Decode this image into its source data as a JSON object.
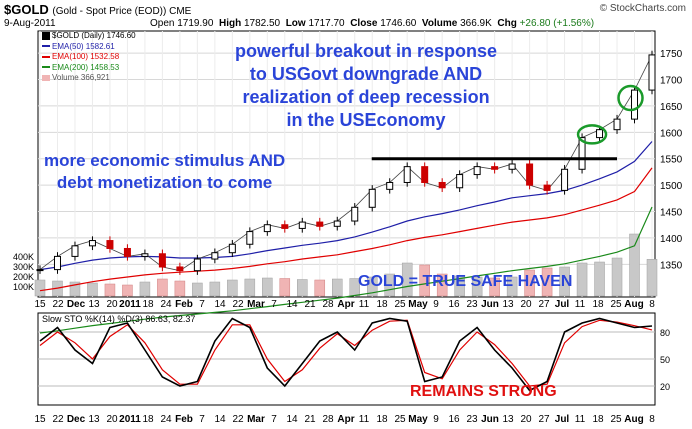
{
  "header": {
    "symbol": "$GOLD",
    "description": "(Gold - Spot Price (EOD)) CME",
    "brand": "© StockCharts.com",
    "date": "9-Aug-2011",
    "open_label": "Open",
    "open": "1719.90",
    "high_label": "High",
    "high": "1782.50",
    "low_label": "Low",
    "low": "1717.70",
    "close_label": "Close",
    "close": "1746.60",
    "volume_label": "Volume",
    "volume": "366.9K",
    "chg_label": "Chg",
    "chg": "+26.80 (+1.56%)"
  },
  "legend": {
    "price": "$GOLD (Daily) 1746.60",
    "ema50": "EMA(50) 1582.61",
    "ema100": "EMA(100) 1532.58",
    "ema200": "EMA(200) 1458.53",
    "volume": "Volume 366,921"
  },
  "annotations": {
    "breakout_line1": "powerful breakout in response",
    "breakout_line2": "to USGovt downgrade AND",
    "breakout_line3": "realization of deep recession",
    "breakout_line4": "in the USEconomy",
    "stimulus_line1": "more economic stimulus AND",
    "stimulus_line2": "debt monetization to come",
    "safe_haven": "GOLD = TRUE SAFE HAVEN",
    "remains_strong": "REMAINS STRONG"
  },
  "colors": {
    "price_up": "#000000",
    "price_down": "#cc0000",
    "ema50": "#1f1fa8",
    "ema100": "#e00000",
    "ema200": "#1a8a1a",
    "volume": "#f0b4b4",
    "stoch_k": "#000000",
    "stoch_d": "#e00000",
    "annotation": "#2a44d8",
    "annotation_alert": "#e01010",
    "resistance": "#000000",
    "ellipse": "#1a9a2a"
  },
  "chart_data": [
    {
      "type": "candlestick",
      "title": "$GOLD (Gold - Spot Price (EOD)) CME",
      "y_axis_side": "right",
      "ylim": [
        1290,
        1790
      ],
      "y_ticks": [
        1350,
        1400,
        1450,
        1500,
        1550,
        1600,
        1650,
        1700,
        1750
      ],
      "volume_ticks": [
        "100K",
        "200K",
        "300K",
        "400K"
      ],
      "volume_ylim": [
        0,
        900
      ],
      "x_tick_labels": [
        "15",
        "22",
        "Dec",
        "13",
        "20",
        "2011",
        "18",
        "24",
        "Feb",
        "7",
        "14",
        "22",
        "Mar",
        "7",
        "14",
        "21",
        "28",
        "Apr",
        "11",
        "18",
        "25",
        "May",
        "9",
        "16",
        "23",
        "Jun",
        "13",
        "20",
        "27",
        "Jul",
        "11",
        "18",
        "25",
        "Aug",
        "8"
      ],
      "x": [
        "Nov 15",
        "Nov 22",
        "Dec 1",
        "Dec 13",
        "Dec 20",
        "Jan 3",
        "Jan 18",
        "Jan 24",
        "Feb 1",
        "Feb 7",
        "Feb 14",
        "Feb 22",
        "Mar 1",
        "Mar 7",
        "Mar 14",
        "Mar 21",
        "Mar 28",
        "Apr 1",
        "Apr 11",
        "Apr 18",
        "Apr 25",
        "May 2",
        "May 9",
        "May 16",
        "May 23",
        "Jun 1",
        "Jun 13",
        "Jun 20",
        "Jun 27",
        "Jul 1",
        "Jul 11",
        "Jul 18",
        "Jul 25",
        "Aug 1",
        "Aug 8",
        "Aug 9"
      ],
      "close": [
        1340,
        1365,
        1385,
        1395,
        1380,
        1365,
        1370,
        1345,
        1338,
        1360,
        1372,
        1388,
        1412,
        1425,
        1418,
        1430,
        1422,
        1432,
        1458,
        1492,
        1505,
        1535,
        1505,
        1495,
        1520,
        1535,
        1530,
        1540,
        1500,
        1490,
        1530,
        1590,
        1605,
        1625,
        1680,
        1746.6
      ],
      "ema50": [
        1340,
        1345,
        1352,
        1358,
        1362,
        1364,
        1365,
        1364,
        1362,
        1362,
        1363,
        1365,
        1370,
        1376,
        1381,
        1386,
        1390,
        1395,
        1402,
        1411,
        1421,
        1432,
        1440,
        1446,
        1453,
        1461,
        1468,
        1476,
        1480,
        1484,
        1490,
        1500,
        1512,
        1525,
        1545,
        1582.61
      ],
      "ema100": [
        1300,
        1305,
        1311,
        1317,
        1322,
        1326,
        1330,
        1333,
        1335,
        1337,
        1339,
        1342,
        1346,
        1351,
        1355,
        1360,
        1364,
        1368,
        1374,
        1380,
        1387,
        1395,
        1401,
        1406,
        1412,
        1418,
        1424,
        1430,
        1434,
        1438,
        1444,
        1453,
        1462,
        1472,
        1488,
        1532.58
      ],
      "ema200": [
        1220,
        1224,
        1229,
        1234,
        1238,
        1242,
        1246,
        1250,
        1253,
        1256,
        1259,
        1262,
        1266,
        1270,
        1274,
        1278,
        1282,
        1286,
        1291,
        1296,
        1302,
        1308,
        1313,
        1318,
        1323,
        1328,
        1333,
        1338,
        1342,
        1346,
        1351,
        1358,
        1365,
        1373,
        1385,
        1458.53
      ],
      "volume": [
        160,
        150,
        140,
        130,
        120,
        110,
        140,
        170,
        150,
        130,
        140,
        160,
        170,
        180,
        175,
        165,
        160,
        170,
        175,
        190,
        220,
        330,
        310,
        220,
        200,
        190,
        180,
        190,
        260,
        280,
        290,
        330,
        340,
        380,
        620,
        366.9
      ],
      "resistance_level": 1550,
      "series": [
        {
          "name": "EMA(50)",
          "last": 1582.61
        },
        {
          "name": "EMA(100)",
          "last": 1532.58
        },
        {
          "name": "EMA(200)",
          "last": 1458.53
        },
        {
          "name": "Volume",
          "last": 366921
        }
      ]
    },
    {
      "type": "line",
      "title": "Slow STO %K(14) %D(3) 86.63, 82.37",
      "ylim": [
        0,
        100
      ],
      "y_ticks": [
        20,
        50,
        80
      ],
      "series": [
        {
          "name": "%K(14)",
          "last": 86.63
        },
        {
          "name": "%D(3)",
          "last": 82.37
        }
      ],
      "k": [
        70,
        85,
        60,
        45,
        85,
        90,
        60,
        30,
        20,
        25,
        70,
        95,
        85,
        40,
        20,
        45,
        70,
        80,
        60,
        90,
        95,
        92,
        25,
        30,
        70,
        85,
        60,
        40,
        15,
        25,
        80,
        90,
        95,
        90,
        85,
        86.63
      ],
      "d": [
        65,
        80,
        68,
        50,
        75,
        88,
        68,
        38,
        22,
        22,
        60,
        88,
        88,
        50,
        25,
        38,
        62,
        78,
        65,
        82,
        92,
        93,
        35,
        28,
        60,
        80,
        66,
        45,
        20,
        22,
        68,
        86,
        93,
        91,
        87,
        82.37
      ]
    }
  ],
  "stoch_label": "Slow STO %K(14) %D(3) 86.63, 82.37"
}
